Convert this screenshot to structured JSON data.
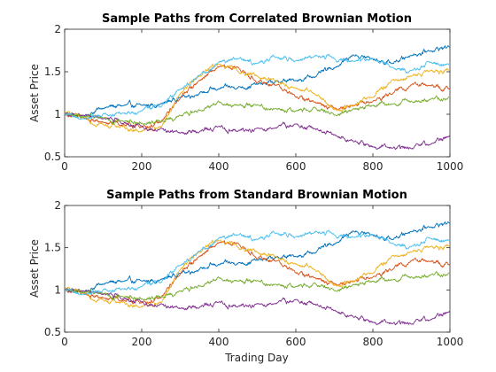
{
  "chart_data": [
    {
      "type": "line",
      "title": "Sample Paths from Correlated Brownian Motion",
      "xlabel": "",
      "ylabel": "Asset Price",
      "xlim": [
        0,
        1000
      ],
      "ylim": [
        0.5,
        2
      ],
      "xticks": [
        "0",
        "200",
        "400",
        "600",
        "800",
        "1000"
      ],
      "yticks": [
        "0.5",
        "1",
        "1.5",
        "2"
      ],
      "grid": false,
      "series": [
        {
          "color": "#0072BD",
          "x": [
            0,
            50,
            100,
            150,
            200,
            250,
            300,
            350,
            400,
            450,
            500,
            550,
            600,
            650,
            700,
            750,
            800,
            850,
            900,
            950,
            1000
          ],
          "values": [
            1.0,
            0.98,
            1.08,
            1.1,
            1.1,
            1.12,
            1.2,
            1.25,
            1.3,
            1.32,
            1.35,
            1.38,
            1.4,
            1.45,
            1.55,
            1.7,
            1.65,
            1.6,
            1.7,
            1.75,
            1.8
          ]
        },
        {
          "color": "#D95319",
          "x": [
            0,
            50,
            100,
            150,
            200,
            250,
            300,
            350,
            400,
            450,
            500,
            550,
            600,
            650,
            700,
            750,
            800,
            850,
            900,
            950,
            1000
          ],
          "values": [
            1.0,
            0.95,
            0.9,
            0.88,
            0.85,
            0.9,
            1.2,
            1.4,
            1.55,
            1.55,
            1.38,
            1.35,
            1.2,
            1.15,
            1.08,
            1.1,
            1.15,
            1.25,
            1.35,
            1.33,
            1.3
          ]
        },
        {
          "color": "#EDB120",
          "x": [
            0,
            50,
            100,
            150,
            200,
            250,
            300,
            350,
            400,
            450,
            500,
            550,
            600,
            650,
            700,
            750,
            800,
            850,
            900,
            950,
            1000
          ],
          "values": [
            1.02,
            0.95,
            0.88,
            0.85,
            0.8,
            0.85,
            1.25,
            1.45,
            1.6,
            1.5,
            1.45,
            1.4,
            1.3,
            1.25,
            1.05,
            1.1,
            1.2,
            1.4,
            1.45,
            1.5,
            1.52
          ]
        },
        {
          "color": "#7E2F8E",
          "x": [
            0,
            50,
            100,
            150,
            200,
            250,
            300,
            350,
            400,
            450,
            500,
            550,
            600,
            650,
            700,
            750,
            800,
            850,
            900,
            950,
            1000
          ],
          "values": [
            1.0,
            0.98,
            0.95,
            0.9,
            0.85,
            0.82,
            0.78,
            0.8,
            0.85,
            0.8,
            0.83,
            0.85,
            0.88,
            0.82,
            0.75,
            0.68,
            0.62,
            0.6,
            0.6,
            0.65,
            0.75
          ]
        },
        {
          "color": "#77AC30",
          "x": [
            0,
            50,
            100,
            150,
            200,
            250,
            300,
            350,
            400,
            450,
            500,
            550,
            600,
            650,
            700,
            750,
            800,
            850,
            900,
            950,
            1000
          ],
          "values": [
            1.0,
            0.97,
            0.95,
            0.92,
            0.9,
            0.92,
            0.98,
            1.05,
            1.15,
            1.1,
            1.12,
            1.05,
            1.05,
            1.08,
            1.0,
            1.05,
            1.1,
            1.12,
            1.15,
            1.18,
            1.2
          ]
        },
        {
          "color": "#4DBEEE",
          "x": [
            0,
            50,
            100,
            150,
            200,
            250,
            300,
            350,
            400,
            450,
            500,
            550,
            600,
            650,
            700,
            750,
            800,
            850,
            900,
            950,
            1000
          ],
          "values": [
            1.0,
            0.95,
            1.0,
            1.02,
            1.05,
            1.1,
            1.3,
            1.45,
            1.62,
            1.65,
            1.6,
            1.68,
            1.62,
            1.7,
            1.65,
            1.62,
            1.65,
            1.55,
            1.5,
            1.6,
            1.58
          ]
        }
      ]
    },
    {
      "type": "line",
      "title": "Sample Paths from Standard Brownian Motion",
      "xlabel": "Trading Day",
      "ylabel": "Asset Price",
      "xlim": [
        0,
        1000
      ],
      "ylim": [
        0.5,
        2
      ],
      "xticks": [
        "0",
        "200",
        "400",
        "600",
        "800",
        "1000"
      ],
      "yticks": [
        "0.5",
        "1",
        "1.5",
        "2"
      ],
      "grid": false,
      "series": [
        {
          "color": "#0072BD",
          "x": [
            0,
            50,
            100,
            150,
            200,
            250,
            300,
            350,
            400,
            450,
            500,
            550,
            600,
            650,
            700,
            750,
            800,
            850,
            900,
            950,
            1000
          ],
          "values": [
            1.0,
            0.98,
            1.08,
            1.1,
            1.1,
            1.12,
            1.2,
            1.25,
            1.3,
            1.32,
            1.35,
            1.38,
            1.4,
            1.45,
            1.55,
            1.7,
            1.65,
            1.6,
            1.7,
            1.75,
            1.8
          ]
        },
        {
          "color": "#D95319",
          "x": [
            0,
            50,
            100,
            150,
            200,
            250,
            300,
            350,
            400,
            450,
            500,
            550,
            600,
            650,
            700,
            750,
            800,
            850,
            900,
            950,
            1000
          ],
          "values": [
            1.0,
            0.95,
            0.9,
            0.88,
            0.85,
            0.9,
            1.2,
            1.4,
            1.55,
            1.55,
            1.38,
            1.35,
            1.2,
            1.15,
            1.08,
            1.1,
            1.15,
            1.25,
            1.35,
            1.33,
            1.3
          ]
        },
        {
          "color": "#EDB120",
          "x": [
            0,
            50,
            100,
            150,
            200,
            250,
            300,
            350,
            400,
            450,
            500,
            550,
            600,
            650,
            700,
            750,
            800,
            850,
            900,
            950,
            1000
          ],
          "values": [
            1.02,
            0.95,
            0.88,
            0.85,
            0.8,
            0.85,
            1.25,
            1.45,
            1.6,
            1.5,
            1.45,
            1.4,
            1.3,
            1.25,
            1.05,
            1.1,
            1.2,
            1.4,
            1.45,
            1.5,
            1.52
          ]
        },
        {
          "color": "#7E2F8E",
          "x": [
            0,
            50,
            100,
            150,
            200,
            250,
            300,
            350,
            400,
            450,
            500,
            550,
            600,
            650,
            700,
            750,
            800,
            850,
            900,
            950,
            1000
          ],
          "values": [
            1.0,
            0.98,
            0.95,
            0.9,
            0.85,
            0.82,
            0.78,
            0.8,
            0.85,
            0.8,
            0.83,
            0.85,
            0.88,
            0.82,
            0.75,
            0.68,
            0.62,
            0.6,
            0.6,
            0.65,
            0.75
          ]
        },
        {
          "color": "#77AC30",
          "x": [
            0,
            50,
            100,
            150,
            200,
            250,
            300,
            350,
            400,
            450,
            500,
            550,
            600,
            650,
            700,
            750,
            800,
            850,
            900,
            950,
            1000
          ],
          "values": [
            1.0,
            0.97,
            0.95,
            0.92,
            0.9,
            0.92,
            0.98,
            1.05,
            1.15,
            1.1,
            1.12,
            1.05,
            1.05,
            1.08,
            1.0,
            1.05,
            1.1,
            1.12,
            1.15,
            1.18,
            1.2
          ]
        },
        {
          "color": "#4DBEEE",
          "x": [
            0,
            50,
            100,
            150,
            200,
            250,
            300,
            350,
            400,
            450,
            500,
            550,
            600,
            650,
            700,
            750,
            800,
            850,
            900,
            950,
            1000
          ],
          "values": [
            1.0,
            0.95,
            1.0,
            1.02,
            1.05,
            1.1,
            1.3,
            1.45,
            1.62,
            1.65,
            1.6,
            1.68,
            1.62,
            1.7,
            1.65,
            1.62,
            1.65,
            1.55,
            1.5,
            1.6,
            1.58
          ]
        }
      ]
    }
  ]
}
